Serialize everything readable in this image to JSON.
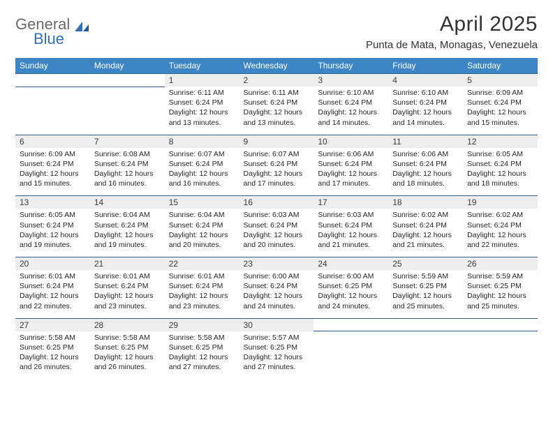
{
  "brand": {
    "word1": "General",
    "word2": "Blue",
    "color_gray": "#6a6a6a",
    "color_blue": "#2f72b8"
  },
  "title": "April 2025",
  "location": "Punta de Mata, Monagas, Venezuela",
  "header_bg": "#3d86c6",
  "daynum_bg": "#eeeeee",
  "border_color": "#2f5f8a",
  "weekdays": [
    "Sunday",
    "Monday",
    "Tuesday",
    "Wednesday",
    "Thursday",
    "Friday",
    "Saturday"
  ],
  "weeks": [
    [
      null,
      null,
      {
        "n": "1",
        "sr": "6:11 AM",
        "ss": "6:24 PM",
        "dl": "12 hours and 13 minutes."
      },
      {
        "n": "2",
        "sr": "6:11 AM",
        "ss": "6:24 PM",
        "dl": "12 hours and 13 minutes."
      },
      {
        "n": "3",
        "sr": "6:10 AM",
        "ss": "6:24 PM",
        "dl": "12 hours and 14 minutes."
      },
      {
        "n": "4",
        "sr": "6:10 AM",
        "ss": "6:24 PM",
        "dl": "12 hours and 14 minutes."
      },
      {
        "n": "5",
        "sr": "6:09 AM",
        "ss": "6:24 PM",
        "dl": "12 hours and 15 minutes."
      }
    ],
    [
      {
        "n": "6",
        "sr": "6:09 AM",
        "ss": "6:24 PM",
        "dl": "12 hours and 15 minutes."
      },
      {
        "n": "7",
        "sr": "6:08 AM",
        "ss": "6:24 PM",
        "dl": "12 hours and 16 minutes."
      },
      {
        "n": "8",
        "sr": "6:07 AM",
        "ss": "6:24 PM",
        "dl": "12 hours and 16 minutes."
      },
      {
        "n": "9",
        "sr": "6:07 AM",
        "ss": "6:24 PM",
        "dl": "12 hours and 17 minutes."
      },
      {
        "n": "10",
        "sr": "6:06 AM",
        "ss": "6:24 PM",
        "dl": "12 hours and 17 minutes."
      },
      {
        "n": "11",
        "sr": "6:06 AM",
        "ss": "6:24 PM",
        "dl": "12 hours and 18 minutes."
      },
      {
        "n": "12",
        "sr": "6:05 AM",
        "ss": "6:24 PM",
        "dl": "12 hours and 18 minutes."
      }
    ],
    [
      {
        "n": "13",
        "sr": "6:05 AM",
        "ss": "6:24 PM",
        "dl": "12 hours and 19 minutes."
      },
      {
        "n": "14",
        "sr": "6:04 AM",
        "ss": "6:24 PM",
        "dl": "12 hours and 19 minutes."
      },
      {
        "n": "15",
        "sr": "6:04 AM",
        "ss": "6:24 PM",
        "dl": "12 hours and 20 minutes."
      },
      {
        "n": "16",
        "sr": "6:03 AM",
        "ss": "6:24 PM",
        "dl": "12 hours and 20 minutes."
      },
      {
        "n": "17",
        "sr": "6:03 AM",
        "ss": "6:24 PM",
        "dl": "12 hours and 21 minutes."
      },
      {
        "n": "18",
        "sr": "6:02 AM",
        "ss": "6:24 PM",
        "dl": "12 hours and 21 minutes."
      },
      {
        "n": "19",
        "sr": "6:02 AM",
        "ss": "6:24 PM",
        "dl": "12 hours and 22 minutes."
      }
    ],
    [
      {
        "n": "20",
        "sr": "6:01 AM",
        "ss": "6:24 PM",
        "dl": "12 hours and 22 minutes."
      },
      {
        "n": "21",
        "sr": "6:01 AM",
        "ss": "6:24 PM",
        "dl": "12 hours and 23 minutes."
      },
      {
        "n": "22",
        "sr": "6:01 AM",
        "ss": "6:24 PM",
        "dl": "12 hours and 23 minutes."
      },
      {
        "n": "23",
        "sr": "6:00 AM",
        "ss": "6:24 PM",
        "dl": "12 hours and 24 minutes."
      },
      {
        "n": "24",
        "sr": "6:00 AM",
        "ss": "6:25 PM",
        "dl": "12 hours and 24 minutes."
      },
      {
        "n": "25",
        "sr": "5:59 AM",
        "ss": "6:25 PM",
        "dl": "12 hours and 25 minutes."
      },
      {
        "n": "26",
        "sr": "5:59 AM",
        "ss": "6:25 PM",
        "dl": "12 hours and 25 minutes."
      }
    ],
    [
      {
        "n": "27",
        "sr": "5:58 AM",
        "ss": "6:25 PM",
        "dl": "12 hours and 26 minutes."
      },
      {
        "n": "28",
        "sr": "5:58 AM",
        "ss": "6:25 PM",
        "dl": "12 hours and 26 minutes."
      },
      {
        "n": "29",
        "sr": "5:58 AM",
        "ss": "6:25 PM",
        "dl": "12 hours and 27 minutes."
      },
      {
        "n": "30",
        "sr": "5:57 AM",
        "ss": "6:25 PM",
        "dl": "12 hours and 27 minutes."
      },
      null,
      null,
      null
    ]
  ],
  "labels": {
    "sunrise": "Sunrise:",
    "sunset": "Sunset:",
    "daylight": "Daylight:"
  }
}
